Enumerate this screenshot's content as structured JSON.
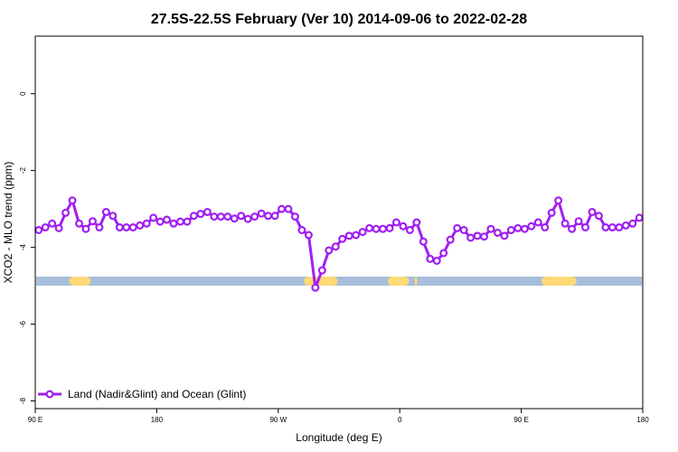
{
  "chart_data": {
    "type": "line",
    "title": "27.5S-22.5S February (Ver 10)   2014-09-06 to 2022-02-28",
    "xlabel": "Longitude (deg E)",
    "ylabel": "XCO2 - MLO trend (ppm)",
    "xlim": [
      90,
      540
    ],
    "ylim": [
      -8.2,
      1.5
    ],
    "x_ticks": [
      {
        "value": 90,
        "label": "90 E"
      },
      {
        "value": 180,
        "label": "180"
      },
      {
        "value": 270,
        "label": "90 W"
      },
      {
        "value": 360,
        "label": "0"
      },
      {
        "value": 450,
        "label": "90 E"
      },
      {
        "value": 540,
        "label": "180"
      }
    ],
    "y_ticks": [
      {
        "value": 0,
        "label": "0"
      },
      {
        "value": -2,
        "label": "-2"
      },
      {
        "value": -4,
        "label": "-4"
      },
      {
        "value": -6,
        "label": "-6"
      },
      {
        "value": -8,
        "label": "-8"
      }
    ],
    "grid": false,
    "legend": {
      "position": "bottom-left",
      "entries": [
        "Land (Nadir&Glint) and Ocean (Glint)"
      ]
    },
    "series": [
      {
        "name": "Land (Nadir&Glint) and Ocean (Glint)",
        "color": "#a020f0",
        "x": [
          92.5,
          97.5,
          102.5,
          107.5,
          112.5,
          117.5,
          122.5,
          127.5,
          132.5,
          137.5,
          142.5,
          147.5,
          152.5,
          157.5,
          162.5,
          167.5,
          172.5,
          177.5,
          182.5,
          187.5,
          192.5,
          197.5,
          202.5,
          207.5,
          212.5,
          217.5,
          222.5,
          227.5,
          232.5,
          237.5,
          242.5,
          247.5,
          252.5,
          257.5,
          262.5,
          267.5,
          272.5,
          277.5,
          282.5,
          287.5,
          292.5,
          297.5,
          302.5,
          307.5,
          312.5,
          317.5,
          322.5,
          327.5,
          332.5,
          337.5,
          342.5,
          347.5,
          352.5,
          357.5,
          362.5,
          367.5,
          372.5,
          377.5,
          382.5,
          387.5,
          392.5,
          397.5,
          402.5,
          407.5,
          412.5,
          417.5,
          422.5,
          427.5,
          432.5,
          437.5,
          442.5,
          447.5,
          452.5,
          457.5,
          462.5,
          467.5,
          472.5,
          477.5,
          482.5,
          487.5,
          492.5,
          497.5,
          502.5,
          507.5,
          512.5,
          517.5,
          522.5,
          527.5,
          532.5,
          537.5
        ],
        "y": [
          -3.55,
          -3.48,
          -3.38,
          -3.5,
          -3.1,
          -2.78,
          -3.38,
          -3.52,
          -3.32,
          -3.48,
          -3.08,
          -3.18,
          -3.48,
          -3.48,
          -3.48,
          -3.43,
          -3.38,
          -3.23,
          -3.33,
          -3.28,
          -3.38,
          -3.33,
          -3.33,
          -3.18,
          -3.13,
          -3.08,
          -3.2,
          -3.2,
          -3.2,
          -3.25,
          -3.18,
          -3.26,
          -3.2,
          -3.12,
          -3.18,
          -3.18,
          -3.0,
          -3.0,
          -3.2,
          -3.55,
          -3.68,
          -5.05,
          -4.6,
          -4.08,
          -3.98,
          -3.78,
          -3.7,
          -3.68,
          -3.6,
          -3.5,
          -3.52,
          -3.52,
          -3.5,
          -3.35,
          -3.45,
          -3.55,
          -3.35,
          -3.85,
          -4.3,
          -4.35,
          -4.15,
          -3.8,
          -3.5,
          -3.55,
          -3.75,
          -3.7,
          -3.72,
          -3.52,
          -3.62,
          -3.7,
          -3.55,
          -3.5,
          -3.52,
          -3.45,
          -3.35,
          -3.48,
          -3.1,
          -2.78,
          -3.38,
          -3.52,
          -3.32,
          -3.48,
          -3.08,
          -3.18,
          -3.48,
          -3.48,
          -3.48,
          -3.43,
          -3.38,
          -3.23
        ]
      }
    ],
    "surface_band": {
      "y": -4.88,
      "ocean_color": "#a6bddb",
      "land_color": "#fed976",
      "land_ranges": [
        [
          115,
          131
        ],
        [
          289,
          314
        ],
        [
          351,
          367
        ],
        [
          371,
          373
        ],
        [
          465,
          491
        ]
      ]
    }
  }
}
